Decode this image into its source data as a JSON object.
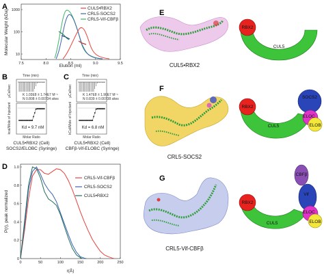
{
  "panels": {
    "A": {
      "label": "A",
      "chart_data": {
        "type": "line",
        "xlabel": "Elution (ml)",
        "ylabel": "Molecular Weight (kDa)",
        "xlim": [
          7.5,
          9.5
        ],
        "ylim": [
          10,
          1000
        ],
        "yscale": "log",
        "xticks": [
          "7.5",
          "8.0",
          "8.5",
          "9.0",
          "9.5"
        ],
        "yticks": [
          "10",
          "100",
          "1000"
        ],
        "series": [
          {
            "name": "CUL5•RBX2",
            "color": "#e8413c",
            "peak_x": 8.75
          },
          {
            "name": "CRL5-SOCS2",
            "color": "#3b63b0",
            "peak_x": 8.35
          },
          {
            "name": "CRL5-Vif-CBFβ",
            "color": "#3db56a",
            "peak_x": 8.25
          }
        ]
      }
    },
    "B": {
      "label": "B",
      "time_label": "Time (min)",
      "top_ylabel": "µCal/sec",
      "bottom_ylabel": "kcal/Mole of Injectant",
      "xlabel": "Molar Ratio",
      "kd_text": "Kd = 9.7 nM",
      "caption1": "CUL5•RBX2 (Cell)",
      "caption2": "SOCS2/ELOBC (Syringe)",
      "fit_lines": [
        "N  0.808 ± 0.00734 sites",
        "K  1.03E8 ± 1.74E7 M⁻¹",
        "ΔH  -8.37 ± 0.0 kcal/mol",
        "ΔS  27.7 cal/mol/deg"
      ]
    },
    "C": {
      "label": "C",
      "time_label": "Time (min)",
      "top_ylabel": "µCal/sec",
      "bottom_ylabel": "kCal/Mole of Injectant",
      "xlabel": "Molar Ratio",
      "kd_text": "Kd = 6.8 nM",
      "caption1": "CUL5•RBX2 (Cell)",
      "caption2": "CBFβ-Vif-ELOBC (Syringe)",
      "fit_lines": [
        "N  0.839 ± 0.00738 sites",
        "K  1.47E8 ± 1.90E7 M⁻¹",
        "ΔH  -7.52 ± 0.0 kcal/mol",
        "ΔS  14.4 cal/mol/deg"
      ]
    },
    "D": {
      "label": "D",
      "chart_data": {
        "type": "line",
        "xlabel": "r(Å)",
        "ylabel": "P(r), peak normalized",
        "xlim": [
          0,
          250
        ],
        "ylim": [
          0,
          1.0
        ],
        "xticks": [
          "0",
          "50",
          "100",
          "150",
          "200",
          "250"
        ],
        "yticks": [
          "0",
          "0.2",
          "0.4",
          "0.6",
          "0.8",
          "1.0"
        ],
        "series": [
          {
            "name": "CRL5-Vif-CBFβ",
            "color": "#e8413c",
            "x": [
              0,
              10,
              20,
              30,
              40,
              50,
              60,
              70,
              80,
              90,
              100,
              110,
              120,
              130,
              140,
              150,
              160,
              170,
              180,
              190,
              200,
              210,
              220,
              230,
              235
            ],
            "y": [
              0,
              0.3,
              0.65,
              0.9,
              0.97,
              0.97,
              0.93,
              0.92,
              0.95,
              0.98,
              0.97,
              0.93,
              0.85,
              0.75,
              0.63,
              0.51,
              0.4,
              0.3,
              0.21,
              0.14,
              0.08,
              0.04,
              0.02,
              0.005,
              0
            ]
          },
          {
            "name": "CRL5-SOCS2",
            "color": "#3b63b0",
            "x": [
              0,
              10,
              20,
              30,
              40,
              50,
              60,
              70,
              80,
              90,
              100,
              110,
              120,
              130,
              140,
              150,
              160,
              165
            ],
            "y": [
              0,
              0.35,
              0.75,
              0.95,
              1.0,
              0.92,
              0.82,
              0.75,
              0.7,
              0.62,
              0.5,
              0.38,
              0.26,
              0.15,
              0.07,
              0.02,
              0.005,
              0
            ]
          },
          {
            "name": "CUL5•RBX2",
            "color": "#1f6e5c",
            "x": [
              0,
              10,
              20,
              30,
              40,
              50,
              60,
              70,
              80,
              90,
              100,
              110,
              120,
              130,
              140,
              150,
              155
            ],
            "y": [
              0,
              0.4,
              0.8,
              1.0,
              0.98,
              0.88,
              0.73,
              0.65,
              0.62,
              0.58,
              0.48,
              0.35,
              0.22,
              0.11,
              0.04,
              0.01,
              0
            ]
          }
        ]
      }
    },
    "E": {
      "label": "E",
      "caption": "CUL5•RBX2",
      "rbx2": "RBX2",
      "cul5": "CUL5"
    },
    "F": {
      "label": "F",
      "caption": "CRL5-SOCS2",
      "rbx2": "RBX2",
      "cul5": "CUL5",
      "socs2": "SOCS2",
      "eloc": "ELOC",
      "elob": "ELOB"
    },
    "G": {
      "label": "G",
      "caption": "CRL5-Vif-CBFβ",
      "rbx2": "RBX2",
      "cul5": "CUL5",
      "cbfb": "CBFβ",
      "vif": "Vif",
      "eloc": "ELOC",
      "elob": "ELOB"
    }
  },
  "colors": {
    "red": "#e8231f",
    "green": "#3ec43a",
    "blue": "#2a45b8",
    "purple": "#8a4fb3",
    "magenta": "#e033c8",
    "yellow": "#f3e73a",
    "envelope_pink": "#e7b8e6",
    "envelope_yellow": "#f0cf4a",
    "envelope_blue": "#aeb8e6"
  }
}
